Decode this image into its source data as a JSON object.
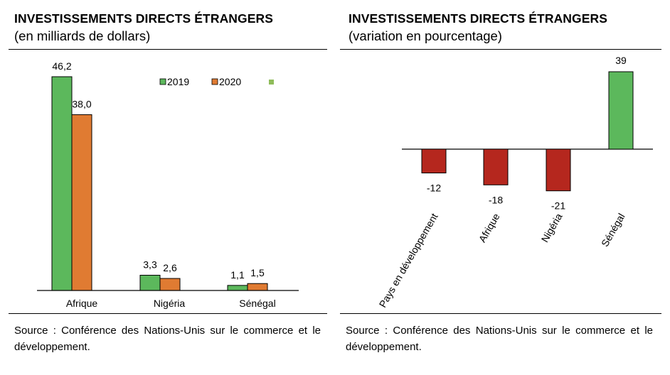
{
  "left_panel": {
    "title": "INVESTISSEMENTS DIRECTS ÉTRANGERS",
    "subtitle": "(en milliards de dollars)",
    "source": "Source : Conférence des Nations-Unis sur le commerce et le développement."
  },
  "right_panel": {
    "title": "INVESTISSEMENTS DIRECTS ÉTRANGERS",
    "subtitle": "(variation en pourcentage)",
    "source": "Source : Conférence des Nations-Unis sur le commerce et le développement."
  },
  "chart_data": [
    {
      "type": "bar",
      "title": "INVESTISSEMENTS DIRECTS ÉTRANGERS",
      "subtitle": "(en milliards de dollars)",
      "categories": [
        "Afrique",
        "Nigéria",
        "Sénégal"
      ],
      "series": [
        {
          "name": "2019",
          "values": [
            46.2,
            3.3,
            1.1
          ],
          "labels": [
            "46,2",
            "3,3",
            "1,1"
          ],
          "color": "#5cb85c"
        },
        {
          "name": "2020",
          "values": [
            38.0,
            2.6,
            1.5
          ],
          "labels": [
            "38,0",
            "2,6",
            "1,5"
          ],
          "color": "#e07b32"
        }
      ],
      "legend_extra_marker_color": "#8fbc5a",
      "legend_position": "top-right",
      "ylim": [
        0,
        46.2
      ],
      "grid": false
    },
    {
      "type": "bar",
      "title": "INVESTISSEMENTS DIRECTS ÉTRANGERS",
      "subtitle": "(variation en pourcentage)",
      "categories": [
        "Pays en développement",
        "Afrique",
        "Nigéria",
        "Sénégal"
      ],
      "values": [
        -12,
        -18,
        -21,
        39
      ],
      "labels": [
        "-12",
        "-18",
        "-21",
        "39"
      ],
      "colors": [
        "#b5271e",
        "#b5271e",
        "#b5271e",
        "#5cb85c"
      ],
      "ylim": [
        -21,
        39
      ],
      "grid": false
    }
  ]
}
